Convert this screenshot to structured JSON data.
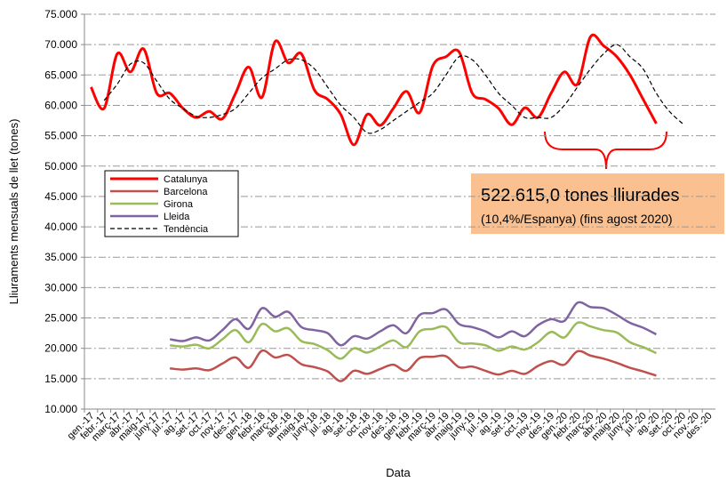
{
  "chart_data": {
    "type": "line",
    "x_label": "Data",
    "y_label": "Lliuraments mensuals de llet (tones)",
    "annotations": [
      "522.615,0 tones lliurades",
      "(10,4%/Espanya) (fins agost 2020)"
    ],
    "categories": [
      "gen.-17",
      "febr.-17",
      "març-17",
      "abr.-17",
      "maig-17",
      "juny-17",
      "jul.-17",
      "ag.-17",
      "set.-17",
      "oct.-17",
      "nov.-17",
      "des.-17",
      "gen.-18",
      "febr.-18",
      "març-18",
      "abr.-18",
      "maig-18",
      "juny-18",
      "jul.-18",
      "ag.-18",
      "set.-18",
      "oct.-18",
      "nov.-18",
      "des.-18",
      "gen.-19",
      "febr.-19",
      "març-19",
      "abr.-19",
      "maig-19",
      "juny-19",
      "jul.-19",
      "ag.-19",
      "set.-19",
      "oct.-19",
      "nov.-19",
      "des.-19",
      "gen.-20",
      "febr.-20",
      "març-20",
      "abr.-20",
      "maig-20",
      "juny-20",
      "jul.-20",
      "ag.-20",
      "set.-20",
      "oct.-20",
      "nov.-20",
      "des.-20"
    ],
    "series": [
      {
        "name": "Catalunya",
        "color": "#ff0000",
        "width": 3,
        "values": [
          63000,
          59500,
          68500,
          65500,
          69300,
          62000,
          62000,
          59500,
          58000,
          59000,
          57800,
          62000,
          66300,
          61300,
          70500,
          67000,
          68500,
          62500,
          61000,
          58500,
          53500,
          58500,
          56700,
          59500,
          62300,
          58800,
          66500,
          68000,
          68800,
          62000,
          61000,
          59500,
          56800,
          59600,
          58000,
          62000,
          65500,
          63500,
          71300,
          69800,
          68000,
          65000,
          61000,
          57000,
          null,
          null,
          null,
          null
        ]
      },
      {
        "name": "Barcelona",
        "color": "#c0504d",
        "width": 2.5,
        "values": [
          null,
          null,
          null,
          null,
          null,
          null,
          16700,
          16500,
          16700,
          16400,
          17500,
          18500,
          16800,
          19600,
          18500,
          18900,
          17400,
          16900,
          16200,
          14600,
          16300,
          15800,
          16600,
          17300,
          16300,
          18400,
          18600,
          18700,
          16900,
          17000,
          16300,
          15700,
          16300,
          15800,
          17100,
          17900,
          17300,
          19500,
          18800,
          18300,
          17600,
          16800,
          16200,
          15500,
          null,
          null,
          null,
          null
        ]
      },
      {
        "name": "Girona",
        "color": "#9bbb59",
        "width": 2.5,
        "values": [
          null,
          null,
          null,
          null,
          null,
          null,
          20500,
          20300,
          20600,
          20000,
          21500,
          23000,
          21000,
          24000,
          22800,
          23300,
          21200,
          20700,
          19700,
          18300,
          20000,
          19300,
          20300,
          21300,
          20200,
          22800,
          23200,
          23500,
          21000,
          20800,
          20500,
          19600,
          20300,
          19800,
          21000,
          22700,
          21800,
          24200,
          23600,
          23000,
          22600,
          21000,
          20200,
          19200,
          null,
          null,
          null,
          null
        ]
      },
      {
        "name": "Lleida",
        "color": "#8064a2",
        "width": 2.5,
        "values": [
          null,
          null,
          null,
          null,
          null,
          null,
          21500,
          21200,
          21800,
          21300,
          23000,
          24800,
          23200,
          26600,
          25200,
          26000,
          23500,
          23000,
          22500,
          20500,
          22000,
          21600,
          22800,
          23800,
          22500,
          25500,
          25800,
          26400,
          24000,
          23500,
          22800,
          21800,
          22800,
          22000,
          23800,
          24800,
          24500,
          27500,
          26800,
          26600,
          25500,
          24200,
          23400,
          22300,
          null,
          null,
          null,
          null
        ]
      },
      {
        "name": "Tendència",
        "color": "#000000",
        "width": 1.2,
        "dashed": true,
        "values": [
          null,
          60800,
          63500,
          66800,
          67000,
          64000,
          61000,
          59500,
          58200,
          58000,
          58500,
          59500,
          62000,
          64500,
          66000,
          67500,
          67500,
          66000,
          63000,
          60000,
          58000,
          55500,
          56000,
          57500,
          59000,
          60500,
          62000,
          65000,
          68000,
          67500,
          65000,
          62000,
          60000,
          58000,
          58000,
          58000,
          60000,
          63000,
          66000,
          68500,
          70000,
          68000,
          66000,
          62000,
          59000,
          57000,
          null,
          null
        ]
      }
    ],
    "ylim": [
      10000,
      75000
    ],
    "yticks": [
      {
        "value": 10000,
        "label": "10.000"
      },
      {
        "value": 15000,
        "label": "15.000"
      },
      {
        "value": 20000,
        "label": "20.000"
      },
      {
        "value": 25000,
        "label": "25.000"
      },
      {
        "value": 30000,
        "label": "30.000"
      },
      {
        "value": 35000,
        "label": "35.000"
      },
      {
        "value": 40000,
        "label": "40.000"
      },
      {
        "value": 45000,
        "label": "45.000"
      },
      {
        "value": 50000,
        "label": "50.000"
      },
      {
        "value": 55000,
        "label": "55.000"
      },
      {
        "value": 60000,
        "label": "60.000"
      },
      {
        "value": 65000,
        "label": "65.000"
      },
      {
        "value": 70000,
        "label": "70.000"
      },
      {
        "value": 75000,
        "label": "75.000"
      }
    ],
    "grid": true
  }
}
